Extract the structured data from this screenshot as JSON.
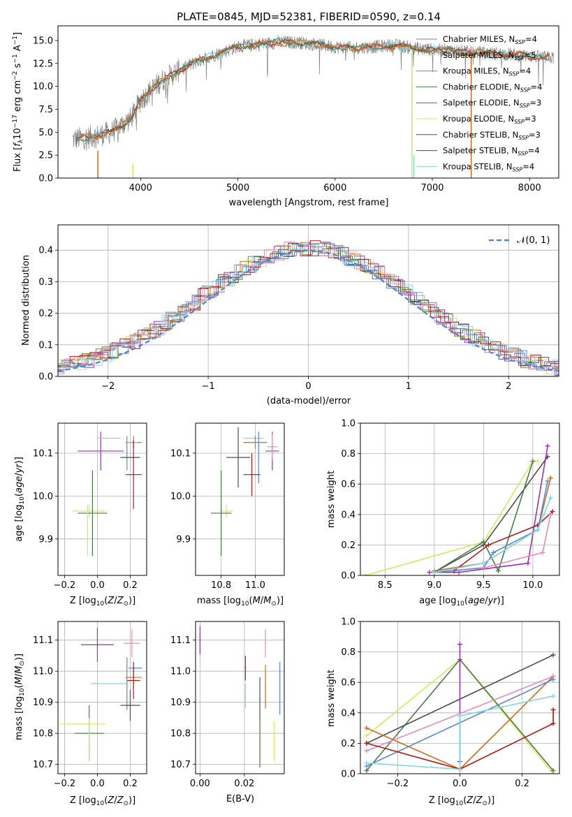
{
  "figure": {
    "colors": {
      "chabrier_miles": "#808080",
      "salpeter_miles": "#e6e6e6",
      "kroupa_miles": "#d2691e",
      "chabrier_elodie": "#4a7a4a",
      "salpeter_elodie": "#9b30b0",
      "kroupa_elodie": "#d4e85a",
      "chabrier_stelib": "#4d4d4d",
      "salpeter_stelib": "#b01818",
      "kroupa_stelib": "#7fd8e0",
      "pink": "#e88ab8",
      "blue": "#5a86d0",
      "orange": "#e0772a",
      "normal_fit": "#5a86d0"
    }
  },
  "chart_data": [
    {
      "id": "spectrum",
      "type": "line",
      "title": "PLATE=0845, MJD=52381, FIBERID=0590, z=0.14",
      "xlabel": "wavelength [Angstrom, rest frame]",
      "ylabel": "Flux [f_λ 10⁻¹⁷ erg cm⁻² s⁻¹ A⁻¹]",
      "xlim": [
        3150,
        8300
      ],
      "ylim": [
        0,
        16.6
      ],
      "xticks": [
        4000,
        5000,
        6000,
        7000,
        8000
      ],
      "yticks": [
        0.0,
        2.5,
        5.0,
        7.5,
        10.0,
        12.5,
        15.0
      ],
      "ytick_labels": [
        "0.0",
        "2.5",
        "5.0",
        "7.5",
        "10.0",
        "12.5",
        "15.0"
      ],
      "legend_position": "top-right",
      "legend": [
        "Chabrier MILES, N_SSP=4",
        "Salpeter MILES, N_SSP=5",
        "Kroupa MILES, N_SSP=4",
        "Chabrier ELODIE, N_SSP=4",
        "Salpeter ELODIE, N_SSP=3",
        "Kroupa ELODIE, N_SSP=3",
        "Chabrier STELIB, N_SSP=3",
        "Salpeter STELIB, N_SSP=4",
        "Kroupa STELIB, N_SSP=4"
      ],
      "continuum": {
        "x": [
          3300,
          3500,
          3700,
          3900,
          4000,
          4200,
          4400,
          4600,
          4800,
          5000,
          5200,
          5400,
          5600,
          5800,
          6000,
          6200,
          6400,
          6600,
          6800,
          7000,
          7200,
          7400,
          7600,
          7800,
          8000,
          8200
        ],
        "y": [
          4.2,
          4.5,
          5.0,
          6.5,
          8.5,
          10.5,
          11.8,
          12.8,
          13.6,
          14.3,
          14.6,
          14.8,
          14.8,
          14.6,
          14.3,
          14.2,
          14.3,
          14.5,
          14.2,
          14.0,
          13.9,
          13.7,
          13.6,
          13.5,
          13.3,
          13.1
        ]
      },
      "cutoff_lines": [
        {
          "x": 3560,
          "y_top": 3.0,
          "series": "kroupa_miles"
        },
        {
          "x": 3920,
          "y_top": 1.5,
          "series": "kroupa_elodie"
        },
        {
          "x": 6790,
          "y_top": 14.0,
          "series": "kroupa_elodie"
        },
        {
          "x": 6810,
          "y_top": 2.5,
          "series": "kroupa_stelib"
        },
        {
          "x": 7400,
          "y_top": 13.5,
          "series": "kroupa_miles"
        }
      ]
    },
    {
      "id": "residuals",
      "type": "line",
      "xlabel": "(data-model)/error",
      "ylabel": "Normed distribution",
      "xlim": [
        -2.5,
        2.5
      ],
      "ylim": [
        0,
        0.48
      ],
      "xticks": [
        -2,
        -1,
        0,
        1,
        2
      ],
      "xtick_labels": [
        "−2",
        "−1",
        "0",
        "1",
        "2"
      ],
      "yticks": [
        0.0,
        0.1,
        0.2,
        0.3,
        0.4
      ],
      "ytick_labels": [
        "0.0",
        "0.1",
        "0.2",
        "0.3",
        "0.4"
      ],
      "legend_position": "top-right",
      "fit_label": "𝒩(0, 1)",
      "histograms": "nine step histograms scattered around the unit normal density"
    },
    {
      "id": "age_vs_Z",
      "type": "scatter",
      "xlabel": "Z [log₁₀(Z/Z⊙)]",
      "ylabel": "age  [log₁₀(age/yr)]",
      "xlim": [
        -0.24,
        0.3
      ],
      "ylim": [
        9.815,
        10.17
      ],
      "xticks": [
        -0.2,
        0.0,
        0.2
      ],
      "xtick_labels": [
        "−0.2",
        "0.0",
        "0.2"
      ],
      "yticks": [
        9.9,
        10.0,
        10.1
      ],
      "ytick_labels": [
        "9.9",
        "10.0",
        "10.1"
      ],
      "points": [
        {
          "x": 0.02,
          "y": 10.105,
          "xerr": 0.14,
          "yerr": 0.045,
          "series": "salpeter_elodie"
        },
        {
          "x": 0.07,
          "y": 10.135,
          "xerr": 0.07,
          "yerr": 0.0,
          "series": "kroupa_stelib"
        },
        {
          "x": 0.22,
          "y": 10.125,
          "xerr": 0.05,
          "yerr": 0.015,
          "series": "kroupa_miles"
        },
        {
          "x": 0.21,
          "y": 10.125,
          "xerr": 0.04,
          "yerr": 0.0,
          "series": "pink"
        },
        {
          "x": 0.18,
          "y": 10.1,
          "xerr": 0.0,
          "yerr": 0.04,
          "series": "blue"
        },
        {
          "x": 0.2,
          "y": 10.09,
          "xerr": 0.06,
          "yerr": 0.0,
          "series": "chabrier_stelib"
        },
        {
          "x": 0.22,
          "y": 10.05,
          "xerr": 0.05,
          "yerr": 0.08,
          "series": "salpeter_stelib"
        },
        {
          "x": -0.05,
          "y": 9.965,
          "xerr": 0.1,
          "yerr": 0.015,
          "series": "kroupa_elodie"
        },
        {
          "x": -0.03,
          "y": 9.96,
          "xerr": 0.09,
          "yerr": 0.1,
          "series": "chabrier_elodie"
        },
        {
          "x": -0.06,
          "y": 9.92,
          "xerr": 0.0,
          "yerr": 0.06,
          "series": "kroupa_elodie"
        }
      ]
    },
    {
      "id": "age_vs_mass",
      "type": "scatter",
      "xlabel": "mass [log₁₀(M/M⊙)]",
      "ylabel": "",
      "xlim": [
        10.65,
        11.17
      ],
      "ylim": [
        9.815,
        10.17
      ],
      "xticks": [
        10.8,
        11.0
      ],
      "xtick_labels": [
        "10.8",
        "11.0"
      ],
      "yticks": [
        9.9,
        10.0,
        10.1
      ],
      "ytick_labels": [
        "9.9",
        "10.0",
        "10.1"
      ],
      "points": [
        {
          "x": 11.1,
          "y": 10.105,
          "xerr": 0.04,
          "yerr": 0.045,
          "series": "salpeter_elodie"
        },
        {
          "x": 10.99,
          "y": 10.135,
          "xerr": 0.06,
          "yerr": 0.0,
          "series": "kroupa_stelib"
        },
        {
          "x": 11.0,
          "y": 10.125,
          "xerr": 0.07,
          "yerr": 0.015,
          "series": "kroupa_miles"
        },
        {
          "x": 11.1,
          "y": 10.115,
          "xerr": 0.03,
          "yerr": 0.03,
          "series": "pink"
        },
        {
          "x": 11.02,
          "y": 10.09,
          "xerr": 0.0,
          "yerr": 0.06,
          "series": "blue"
        },
        {
          "x": 10.9,
          "y": 10.09,
          "xerr": 0.07,
          "yerr": 0.07,
          "series": "chabrier_stelib"
        },
        {
          "x": 10.98,
          "y": 10.05,
          "xerr": 0.05,
          "yerr": 0.05,
          "series": "salpeter_stelib"
        },
        {
          "x": 10.83,
          "y": 9.965,
          "xerr": 0.04,
          "yerr": 0.015,
          "series": "kroupa_elodie"
        },
        {
          "x": 10.8,
          "y": 9.96,
          "xerr": 0.06,
          "yerr": 0.1,
          "series": "chabrier_elodie"
        }
      ]
    },
    {
      "id": "weight_vs_age",
      "type": "line",
      "xlabel": "age  [log₁₀(age/yr)]",
      "ylabel": "mass weight",
      "xlim": [
        8.25,
        10.27
      ],
      "ylim": [
        0,
        1.0
      ],
      "xticks": [
        8.5,
        9.0,
        9.5,
        10.0
      ],
      "xtick_labels": [
        "8.5",
        "9.0",
        "9.5",
        "10.0"
      ],
      "yticks": [
        0.0,
        0.2,
        0.4,
        0.6,
        0.8,
        1.0
      ],
      "ytick_labels": [
        "0.0",
        "0.2",
        "0.4",
        "0.6",
        "0.8",
        "1.0"
      ],
      "series": [
        {
          "series": "kroupa_elodie",
          "x": [
            8.3,
            9.5,
            10.0,
            10.05
          ],
          "y": [
            0.0,
            0.22,
            0.75,
            0.75
          ]
        },
        {
          "series": "chabrier_stelib",
          "x": [
            9.0,
            9.5,
            10.15
          ],
          "y": [
            0.02,
            0.2,
            0.78
          ]
        },
        {
          "series": "salpeter_elodie",
          "x": [
            8.95,
            9.25,
            9.95,
            10.15
          ],
          "y": [
            0.02,
            0.02,
            0.08,
            0.85
          ]
        },
        {
          "series": "kroupa_miles",
          "x": [
            9.0,
            9.5,
            10.05,
            10.18
          ],
          "y": [
            0.03,
            0.08,
            0.3,
            0.64
          ]
        },
        {
          "series": "chabrier_elodie",
          "x": [
            9.0,
            9.5,
            9.65,
            10.0
          ],
          "y": [
            0.02,
            0.22,
            0.03,
            0.75
          ]
        },
        {
          "series": "salpeter_stelib",
          "x": [
            9.2,
            9.55,
            10.05,
            10.2
          ],
          "y": [
            0.03,
            0.2,
            0.33,
            0.42
          ]
        },
        {
          "series": "blue",
          "x": [
            9.0,
            9.5,
            9.6,
            10.05,
            10.15
          ],
          "y": [
            0.02,
            0.05,
            0.15,
            0.3,
            0.62
          ]
        },
        {
          "series": "pink",
          "x": [
            9.5,
            10.1,
            10.18
          ],
          "y": [
            0.05,
            0.15,
            0.4
          ]
        },
        {
          "series": "kroupa_stelib",
          "x": [
            9.0,
            9.5,
            10.05,
            10.18
          ],
          "y": [
            0.02,
            0.08,
            0.3,
            0.51
          ]
        }
      ]
    },
    {
      "id": "mass_vs_Z",
      "type": "scatter",
      "xlabel": "Z [log₁₀(Z/Z⊙)]",
      "ylabel": "mass [log₁₀(M/M⊙)]",
      "xlim": [
        -0.24,
        0.3
      ],
      "ylim": [
        10.67,
        11.16
      ],
      "xticks": [
        -0.2,
        0.0,
        0.2
      ],
      "xtick_labels": [
        "−0.2",
        "0.0",
        "0.2"
      ],
      "yticks": [
        10.7,
        10.8,
        10.9,
        11.0,
        11.1
      ],
      "ytick_labels": [
        "10.7",
        "10.8",
        "10.9",
        "11.0",
        "11.1"
      ],
      "points": [
        {
          "x": 0.0,
          "y": 11.085,
          "xerr": 0.1,
          "yerr": 0.055,
          "series": "salpeter_elodie"
        },
        {
          "x": 0.21,
          "y": 11.09,
          "xerr": 0.05,
          "yerr": 0.045,
          "series": "pink"
        },
        {
          "x": 0.23,
          "y": 11.01,
          "xerr": 0.04,
          "yerr": 0.0,
          "series": "blue"
        },
        {
          "x": 0.22,
          "y": 10.98,
          "xerr": 0.05,
          "yerr": 0.035,
          "series": "kroupa_miles"
        },
        {
          "x": 0.22,
          "y": 10.97,
          "xerr": 0.04,
          "yerr": 0.06,
          "series": "salpeter_stelib"
        },
        {
          "x": 0.07,
          "y": 10.96,
          "xerr": 0.11,
          "yerr": 0.0,
          "series": "kroupa_stelib"
        },
        {
          "x": 0.18,
          "y": 10.96,
          "xerr": 0.0,
          "yerr": 0.085,
          "series": "blue"
        },
        {
          "x": 0.2,
          "y": 10.89,
          "xerr": 0.06,
          "yerr": 0.05,
          "series": "chabrier_stelib"
        },
        {
          "x": -0.09,
          "y": 10.83,
          "xerr": 0.14,
          "yerr": 0.0,
          "series": "kroupa_elodie"
        },
        {
          "x": -0.05,
          "y": 10.8,
          "xerr": 0.09,
          "yerr": 0.09,
          "series": "chabrier_elodie"
        },
        {
          "x": -0.05,
          "y": 10.78,
          "xerr": 0.0,
          "yerr": 0.07,
          "series": "kroupa_elodie"
        }
      ]
    },
    {
      "id": "mass_vs_ebv",
      "type": "scatter",
      "xlabel": "E(B-V)",
      "ylabel": "",
      "xlim": [
        -0.002,
        0.038
      ],
      "ylim": [
        10.67,
        11.16
      ],
      "xticks": [
        0.0,
        0.02
      ],
      "xtick_labels": [
        "0.00",
        "0.02"
      ],
      "yticks": [
        10.7,
        10.8,
        10.9,
        11.0,
        11.1
      ],
      "ytick_labels": [
        "10.7",
        "10.8",
        "10.9",
        "11.0",
        "11.1"
      ],
      "points": [
        {
          "x": 0.0,
          "y": 11.1,
          "xerr": 0.0,
          "yerr": 0.045,
          "series": "salpeter_elodie"
        },
        {
          "x": 0.0205,
          "y": 11.01,
          "xerr": 0.0,
          "yerr": 0.04,
          "series": "salpeter_stelib"
        },
        {
          "x": 0.0205,
          "y": 10.92,
          "xerr": 0.0,
          "yerr": 0.04,
          "series": "kroupa_stelib"
        },
        {
          "x": 0.0295,
          "y": 11.09,
          "xerr": 0.0,
          "yerr": 0.045,
          "series": "pink"
        },
        {
          "x": 0.0295,
          "y": 10.95,
          "xerr": 0.0,
          "yerr": 0.07,
          "series": "kroupa_miles"
        },
        {
          "x": 0.027,
          "y": 10.91,
          "xerr": 0.0,
          "yerr": 0.07,
          "series": "chabrier_stelib"
        },
        {
          "x": 0.027,
          "y": 10.78,
          "xerr": 0.0,
          "yerr": 0.09,
          "series": "chabrier_elodie"
        },
        {
          "x": 0.036,
          "y": 10.945,
          "xerr": 0.0,
          "yerr": 0.085,
          "series": "blue"
        },
        {
          "x": 0.0335,
          "y": 10.775,
          "xerr": 0.0,
          "yerr": 0.065,
          "series": "kroupa_elodie"
        }
      ]
    },
    {
      "id": "weight_vs_Z",
      "type": "line",
      "xlabel": "Z [log₁₀(Z/Z⊙)]",
      "ylabel": "mass weight",
      "xlim": [
        -0.32,
        0.32
      ],
      "ylim": [
        0,
        1.0
      ],
      "xticks": [
        -0.2,
        0.0,
        0.2
      ],
      "xtick_labels": [
        "−0.2",
        "0.0",
        "0.2"
      ],
      "yticks": [
        0.0,
        0.2,
        0.4,
        0.6,
        0.8,
        1.0
      ],
      "ytick_labels": [
        "0.0",
        "0.2",
        "0.4",
        "0.6",
        "0.8",
        "1.0"
      ],
      "series": [
        {
          "series": "kroupa_elodie",
          "x": [
            -0.3,
            0.0,
            0.3
          ],
          "y": [
            0.25,
            0.75,
            0.0
          ]
        },
        {
          "series": "chabrier_elodie",
          "x": [
            -0.3,
            0.0,
            0.3
          ],
          "y": [
            0.02,
            0.75,
            0.02
          ]
        },
        {
          "series": "chabrier_stelib",
          "x": [
            -0.3,
            0.3
          ],
          "y": [
            0.2,
            0.78
          ]
        },
        {
          "series": "salpeter_elodie",
          "x": [
            0.0,
            0.0
          ],
          "y": [
            0.08,
            0.85
          ]
        },
        {
          "series": "kroupa_miles",
          "x": [
            -0.3,
            0.0,
            0.3
          ],
          "y": [
            0.3,
            0.03,
            0.64
          ]
        },
        {
          "series": "pink",
          "x": [
            -0.3,
            0.3
          ],
          "y": [
            0.15,
            0.64
          ]
        },
        {
          "series": "blue",
          "x": [
            -0.3,
            0.3
          ],
          "y": [
            0.05,
            0.62
          ]
        },
        {
          "series": "salpeter_stelib",
          "x": [
            -0.3,
            0.0,
            0.3,
            0.3
          ],
          "y": [
            0.2,
            0.03,
            0.33,
            0.42
          ]
        },
        {
          "series": "kroupa_stelib",
          "x": [
            -0.3,
            0.0,
            0.0,
            0.3
          ],
          "y": [
            0.07,
            0.03,
            0.38,
            0.51
          ]
        }
      ]
    }
  ]
}
